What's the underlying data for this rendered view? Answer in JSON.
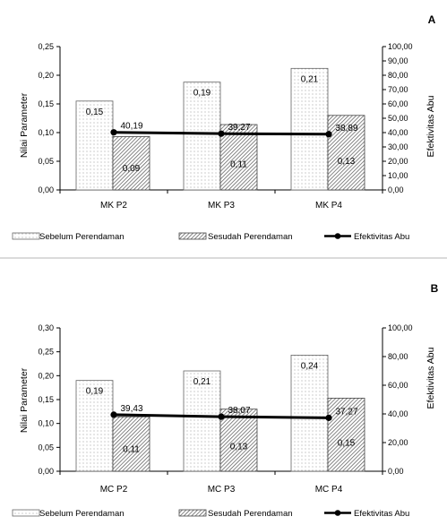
{
  "colors": {
    "bar_before_fill": "#ffffff",
    "bar_before_dots": "#8a8a8a",
    "bar_after_hatch": "#555555",
    "line": "#000000",
    "divider": "#cfcfcf"
  },
  "chart_data": [
    {
      "panel_label": "A",
      "type": "bar",
      "categories": [
        "MK P2",
        "MK P3",
        "MK P4"
      ],
      "ylabel": "Nilai Parameter",
      "y2label": "Efektivitas Abu",
      "ylim": [
        0,
        0.25
      ],
      "y_ticks": [
        "0,00",
        "0,05",
        "0,10",
        "0,15",
        "0,20",
        "0,25"
      ],
      "y2lim": [
        0,
        100
      ],
      "y2_ticks": [
        "0,00",
        "10,00",
        "20,00",
        "30,00",
        "40,00",
        "50,00",
        "60,00",
        "70,00",
        "80,00",
        "90,00",
        "100,00"
      ],
      "series": [
        {
          "name": "Sebelum Perendaman",
          "kind": "bar",
          "pattern": "dots",
          "values": [
            0.155,
            0.188,
            0.212
          ],
          "labels": [
            "0,15",
            "0,19",
            "0,21"
          ]
        },
        {
          "name": "Sesudah Perendaman",
          "kind": "bar",
          "pattern": "hatch",
          "values": [
            0.093,
            0.114,
            0.13
          ],
          "labels": [
            "0,09",
            "0,11",
            "0,13"
          ]
        },
        {
          "name": "Efektivitas Abu",
          "kind": "line",
          "axis": "right",
          "values": [
            40.19,
            39.27,
            38.89
          ],
          "labels": [
            "40,19",
            "39,27",
            "38,89"
          ]
        }
      ],
      "legend": [
        "Sebelum Perendaman",
        "Sesudah Perendaman",
        "Efektivitas Abu"
      ],
      "legend_position": "bottom"
    },
    {
      "panel_label": "B",
      "type": "bar",
      "categories": [
        "MC P2",
        "MC P3",
        "MC P4"
      ],
      "ylabel": "Nilai Parameter",
      "y2label": "Efektivitas Abu",
      "ylim": [
        0,
        0.3
      ],
      "y_ticks": [
        "0,00",
        "0,05",
        "0,10",
        "0,15",
        "0,20",
        "0,25",
        "0,30"
      ],
      "y2lim": [
        0,
        100
      ],
      "y2_ticks": [
        "0,00",
        "20,00",
        "40,00",
        "60,00",
        "80,00",
        "100,00"
      ],
      "series": [
        {
          "name": "Sebelum Perendaman",
          "kind": "bar",
          "pattern": "dots",
          "values": [
            0.19,
            0.21,
            0.243
          ],
          "labels": [
            "0,19",
            "0,21",
            "0,24"
          ]
        },
        {
          "name": "Sesudah Perendaman",
          "kind": "bar",
          "pattern": "hatch",
          "values": [
            0.114,
            0.13,
            0.153
          ],
          "labels": [
            "0,11",
            "0,13",
            "0,15"
          ]
        },
        {
          "name": "Efektivitas Abu",
          "kind": "line",
          "axis": "right",
          "values": [
            39.43,
            38.07,
            37.27
          ],
          "labels": [
            "39,43",
            "38,07",
            "37,27"
          ]
        }
      ],
      "legend": [
        "Sebelum Perendaman",
        "Sesudah Perendaman",
        "Efektivitas Abu"
      ],
      "legend_position": "bottom"
    }
  ]
}
